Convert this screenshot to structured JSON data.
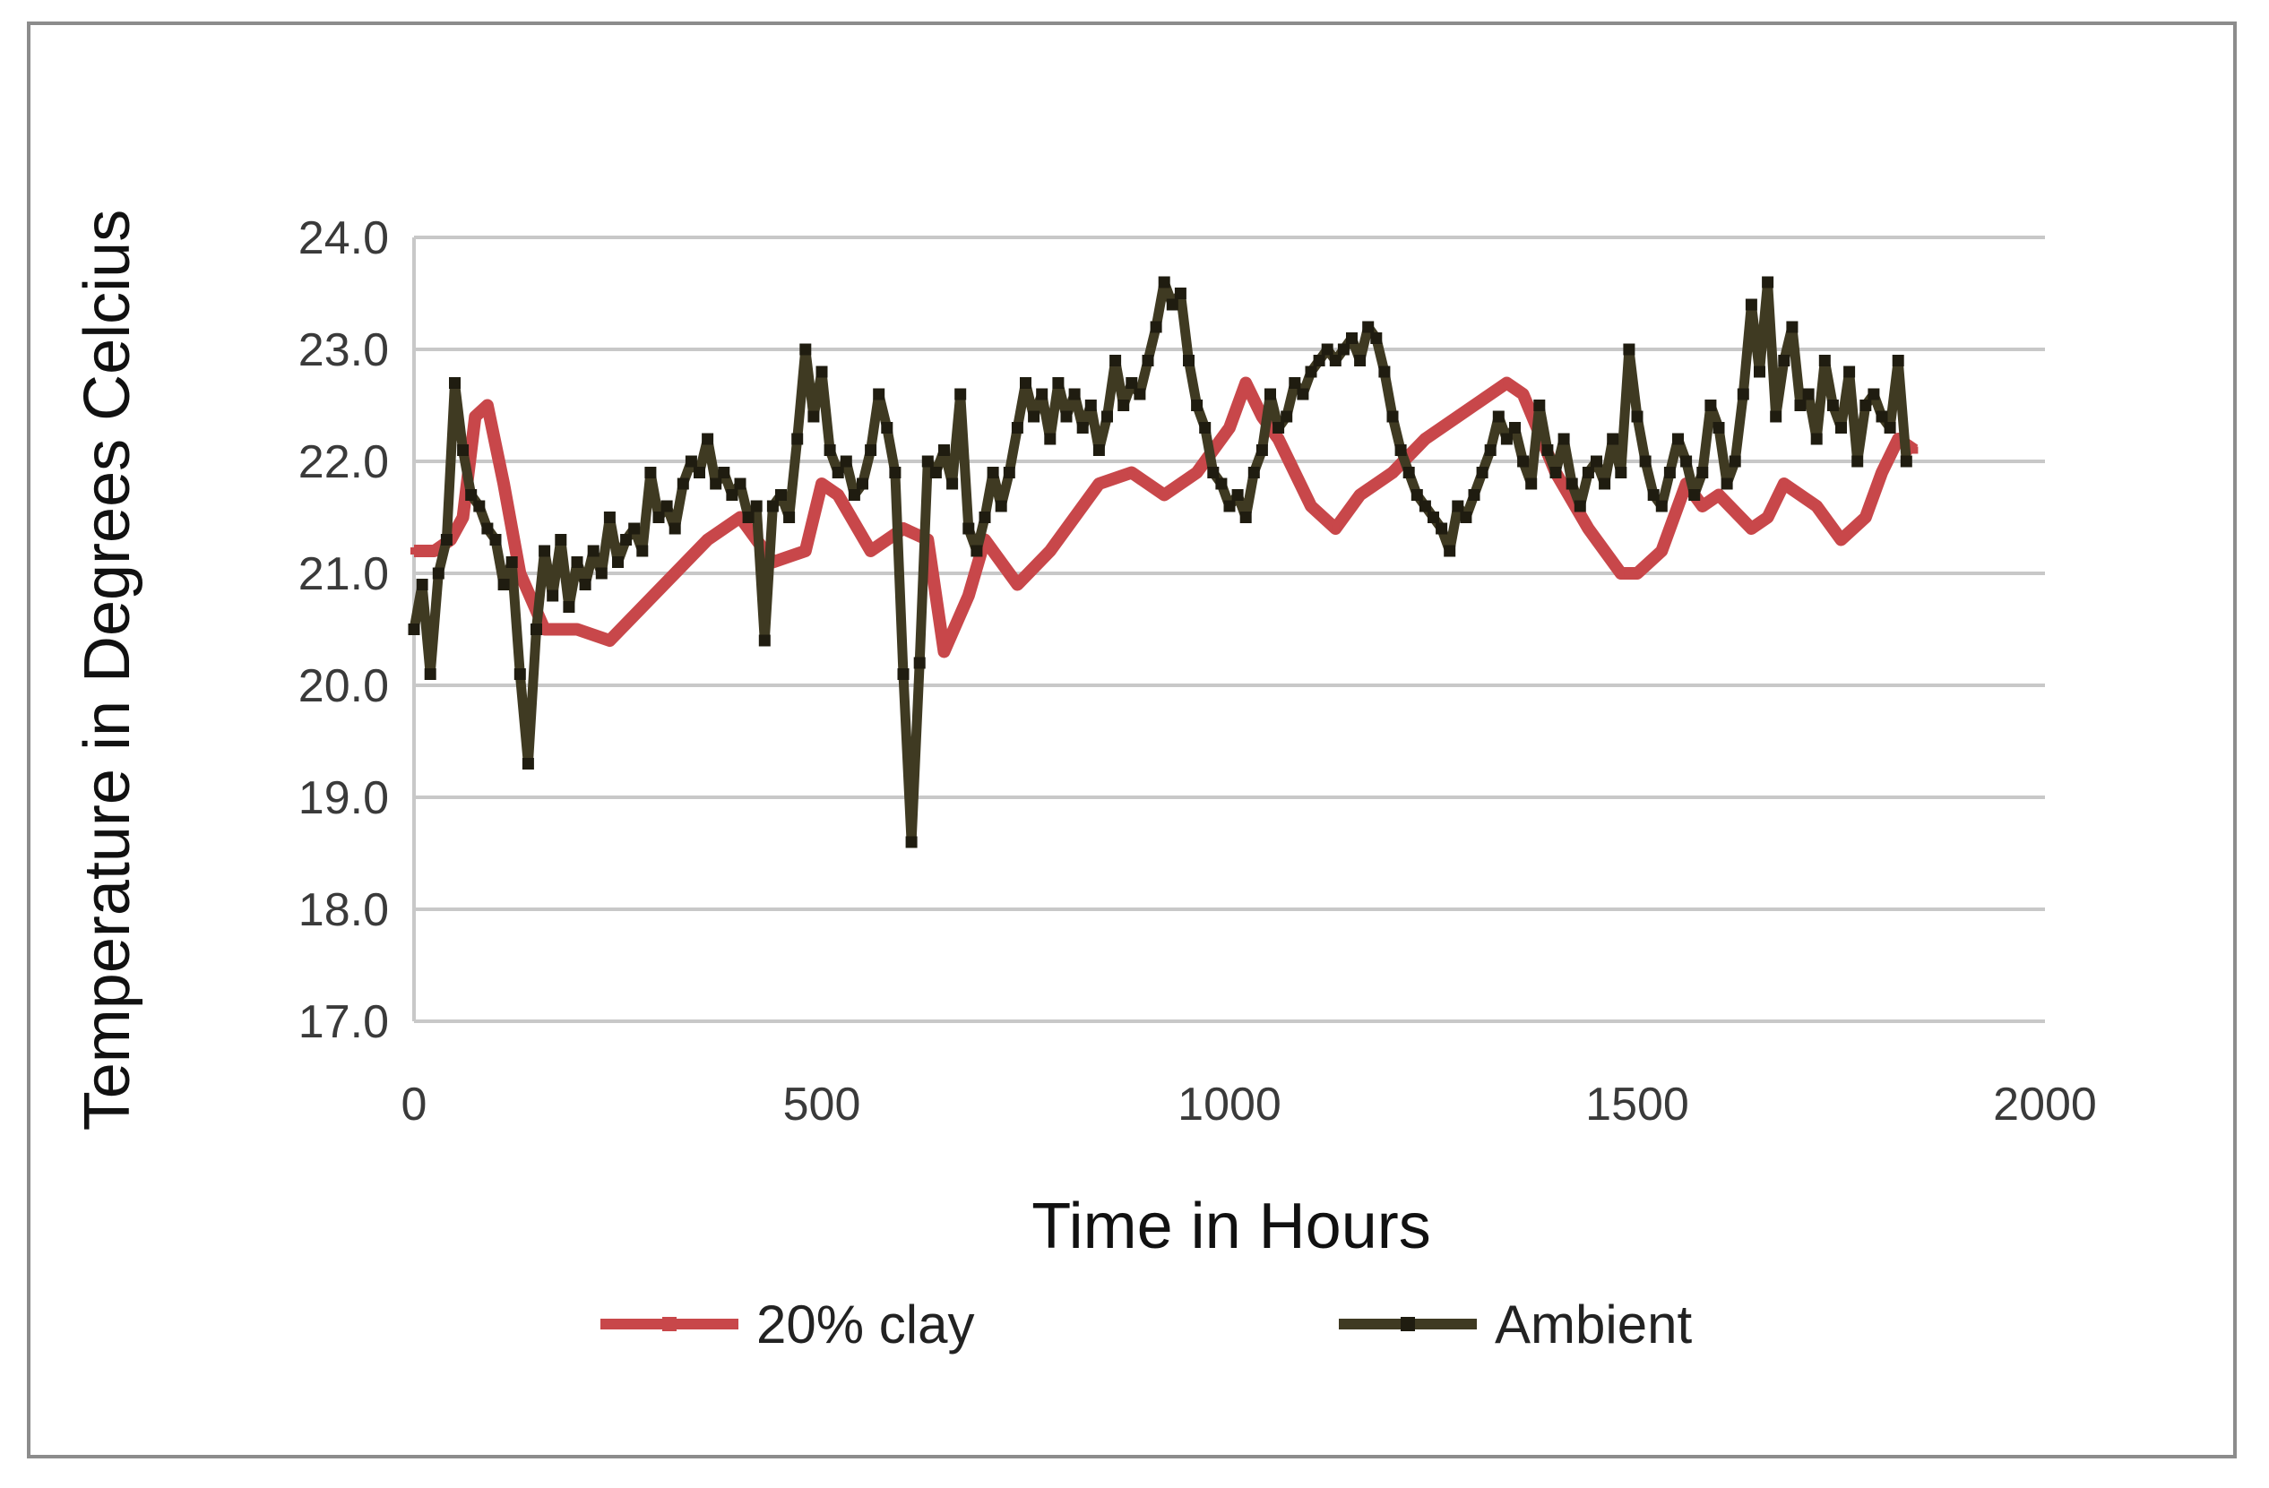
{
  "chart_data": {
    "type": "line",
    "title": "",
    "xlabel": "Time in Hours",
    "ylabel": "Temperature in Degrees Celcius",
    "xlim": [
      0,
      2000
    ],
    "ylim": [
      17.0,
      24.0
    ],
    "x_ticks": [
      "0",
      "500",
      "1000",
      "1500",
      "2000"
    ],
    "y_ticks": [
      "17.0",
      "18.0",
      "19.0",
      "20.0",
      "21.0",
      "22.0",
      "23.0",
      "24.0"
    ],
    "grid": "horizontal",
    "legend": "bottom",
    "series": [
      {
        "name": "20% clay",
        "color": "#c8474a",
        "x": [
          0,
          25,
          45,
          60,
          75,
          90,
          110,
          130,
          160,
          200,
          240,
          280,
          320,
          360,
          400,
          440,
          480,
          500,
          520,
          560,
          600,
          630,
          650,
          680,
          700,
          740,
          780,
          800,
          840,
          880,
          920,
          960,
          1000,
          1020,
          1040,
          1060,
          1100,
          1130,
          1160,
          1200,
          1240,
          1280,
          1320,
          1340,
          1360,
          1400,
          1440,
          1480,
          1500,
          1530,
          1560,
          1580,
          1600,
          1640,
          1660,
          1680,
          1720,
          1750,
          1780,
          1800,
          1820,
          1840
        ],
        "y": [
          21.2,
          21.2,
          21.3,
          21.5,
          22.4,
          22.5,
          21.8,
          21.0,
          20.5,
          20.5,
          20.4,
          20.7,
          21.0,
          21.3,
          21.5,
          21.1,
          21.2,
          21.8,
          21.7,
          21.2,
          21.4,
          21.3,
          20.3,
          20.8,
          21.3,
          20.9,
          21.2,
          21.4,
          21.8,
          21.9,
          21.7,
          21.9,
          22.3,
          22.7,
          22.4,
          22.2,
          21.6,
          21.4,
          21.7,
          21.9,
          22.2,
          22.4,
          22.6,
          22.7,
          22.6,
          21.9,
          21.4,
          21.0,
          21.0,
          21.2,
          21.8,
          21.6,
          21.7,
          21.4,
          21.5,
          21.8,
          21.6,
          21.3,
          21.5,
          21.9,
          22.2,
          22.1
        ]
      },
      {
        "name": "Ambient",
        "color": "#3f3a22",
        "x": [
          0,
          10,
          20,
          30,
          40,
          50,
          60,
          70,
          80,
          90,
          100,
          110,
          120,
          130,
          140,
          150,
          160,
          170,
          180,
          190,
          200,
          210,
          220,
          230,
          240,
          250,
          260,
          270,
          280,
          290,
          300,
          310,
          320,
          330,
          340,
          350,
          360,
          370,
          380,
          390,
          400,
          410,
          420,
          430,
          440,
          450,
          460,
          470,
          480,
          490,
          500,
          510,
          520,
          530,
          540,
          550,
          560,
          570,
          580,
          590,
          600,
          610,
          620,
          630,
          640,
          650,
          660,
          670,
          680,
          690,
          700,
          710,
          720,
          730,
          740,
          750,
          760,
          770,
          780,
          790,
          800,
          810,
          820,
          830,
          840,
          850,
          860,
          870,
          880,
          890,
          900,
          910,
          920,
          930,
          940,
          950,
          960,
          970,
          980,
          990,
          1000,
          1010,
          1020,
          1030,
          1040,
          1050,
          1060,
          1070,
          1080,
          1090,
          1100,
          1110,
          1120,
          1130,
          1140,
          1150,
          1160,
          1170,
          1180,
          1190,
          1200,
          1210,
          1220,
          1230,
          1240,
          1250,
          1260,
          1270,
          1280,
          1290,
          1300,
          1310,
          1320,
          1330,
          1340,
          1350,
          1360,
          1370,
          1380,
          1390,
          1400,
          1410,
          1420,
          1430,
          1440,
          1450,
          1460,
          1470,
          1480,
          1490,
          1500,
          1510,
          1520,
          1530,
          1540,
          1550,
          1560,
          1570,
          1580,
          1590,
          1600,
          1610,
          1620,
          1630,
          1640,
          1650,
          1660,
          1670,
          1680,
          1690,
          1700,
          1710,
          1720,
          1730,
          1740,
          1750,
          1760,
          1770,
          1780,
          1790,
          1800,
          1810,
          1820,
          1830
        ],
        "y": [
          20.5,
          20.9,
          20.1,
          21.0,
          21.3,
          22.7,
          22.1,
          21.7,
          21.6,
          21.4,
          21.3,
          20.9,
          21.1,
          20.1,
          19.3,
          20.5,
          21.2,
          20.8,
          21.3,
          20.7,
          21.1,
          20.9,
          21.2,
          21.0,
          21.5,
          21.1,
          21.3,
          21.4,
          21.2,
          21.9,
          21.5,
          21.6,
          21.4,
          21.8,
          22.0,
          21.9,
          22.2,
          21.8,
          21.9,
          21.7,
          21.8,
          21.5,
          21.6,
          20.4,
          21.6,
          21.7,
          21.5,
          22.2,
          23.0,
          22.4,
          22.8,
          22.1,
          21.9,
          22.0,
          21.7,
          21.8,
          22.1,
          22.6,
          22.3,
          21.9,
          20.1,
          18.6,
          20.2,
          22.0,
          21.9,
          22.1,
          21.8,
          22.6,
          21.4,
          21.2,
          21.5,
          21.9,
          21.6,
          21.9,
          22.3,
          22.7,
          22.4,
          22.6,
          22.2,
          22.7,
          22.4,
          22.6,
          22.3,
          22.5,
          22.1,
          22.4,
          22.9,
          22.5,
          22.7,
          22.6,
          22.9,
          23.2,
          23.6,
          23.4,
          23.5,
          22.9,
          22.5,
          22.3,
          21.9,
          21.8,
          21.6,
          21.7,
          21.5,
          21.9,
          22.1,
          22.6,
          22.3,
          22.4,
          22.7,
          22.6,
          22.8,
          22.9,
          23.0,
          22.9,
          23.0,
          23.1,
          22.9,
          23.2,
          23.1,
          22.8,
          22.4,
          22.1,
          21.9,
          21.7,
          21.6,
          21.5,
          21.4,
          21.2,
          21.6,
          21.5,
          21.7,
          21.9,
          22.1,
          22.4,
          22.2,
          22.3,
          22.0,
          21.8,
          22.5,
          22.1,
          21.9,
          22.2,
          21.8,
          21.6,
          21.9,
          22.0,
          21.8,
          22.2,
          21.9,
          23.0,
          22.4,
          22.0,
          21.7,
          21.6,
          21.9,
          22.2,
          22.0,
          21.7,
          21.9,
          22.5,
          22.3,
          21.8,
          22.0,
          22.6,
          23.4,
          22.8,
          23.6,
          22.4,
          22.9,
          23.2,
          22.5,
          22.6,
          22.2,
          22.9,
          22.5,
          22.3,
          22.8,
          22.0,
          22.5,
          22.6,
          22.4,
          22.3,
          22.9,
          22.0
        ]
      }
    ]
  }
}
